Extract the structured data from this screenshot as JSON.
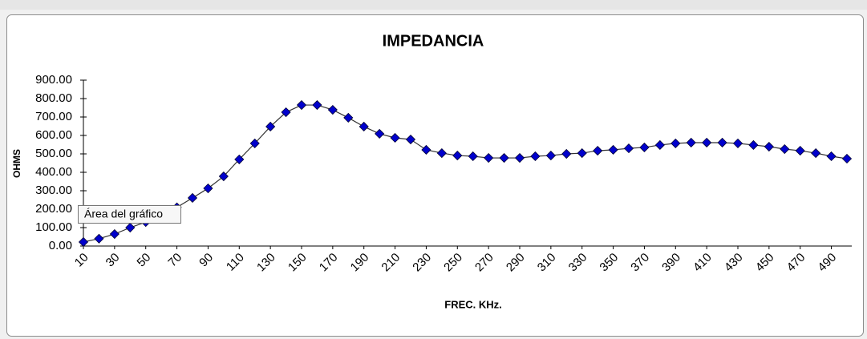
{
  "chart_data": {
    "type": "line",
    "title": "IMPEDANCIA",
    "y_label": "OHMS",
    "x_label": "FREC. KHz.",
    "tooltip": "Área del gráfico",
    "categories": [
      "10",
      null,
      "30",
      null,
      "50",
      null,
      "70",
      null,
      "90",
      null,
      "110",
      null,
      "130",
      null,
      "150",
      null,
      "170",
      null,
      "190",
      null,
      "210",
      null,
      "230",
      null,
      "250",
      null,
      "270",
      null,
      "290",
      null,
      "310",
      null,
      "330",
      null,
      "350",
      null,
      "370",
      null,
      "390",
      null,
      "410",
      null,
      "430",
      null,
      "450",
      null,
      "470",
      null,
      "490",
      null
    ],
    "series": [
      {
        "name": "OHMS",
        "color": "#0000cc",
        "line_color": "#333333",
        "values": [
          22,
          40,
          65,
          100,
          130,
          160,
          210,
          261,
          313,
          378,
          470,
          557,
          648,
          726,
          765,
          765,
          739,
          696,
          648,
          609,
          587,
          578,
          522,
          504,
          491,
          487,
          478,
          478,
          478,
          487,
          491,
          500,
          504,
          517,
          522,
          530,
          535,
          548,
          557,
          561,
          561,
          561,
          557,
          548,
          539,
          526,
          517,
          504,
          487,
          474
        ]
      }
    ],
    "ylim": [
      0,
      900
    ],
    "yticks": [
      {
        "value": 0,
        "label": "0.00"
      },
      {
        "value": 100,
        "label": "100.00"
      },
      {
        "value": 200,
        "label": "200.00"
      },
      {
        "value": 300,
        "label": "300.00"
      },
      {
        "value": 400,
        "label": "400.00"
      },
      {
        "value": 500,
        "label": "500.00"
      },
      {
        "value": 600,
        "label": "600.00"
      },
      {
        "value": 700,
        "label": "700.00"
      },
      {
        "value": 800,
        "label": "800.00"
      },
      {
        "value": 900,
        "label": "900.00"
      }
    ],
    "grid": false
  }
}
